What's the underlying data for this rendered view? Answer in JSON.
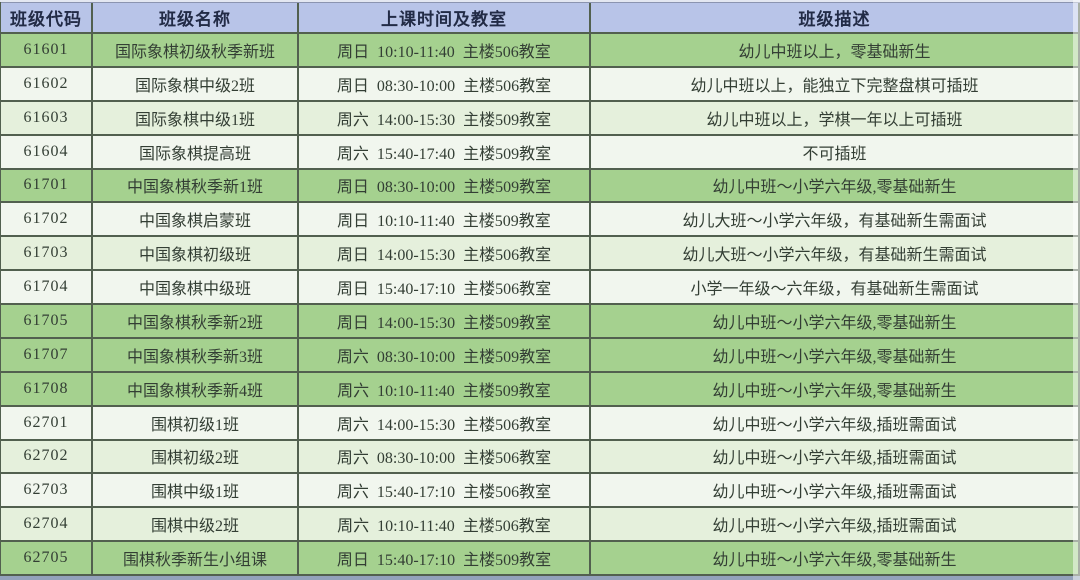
{
  "colors": {
    "header_bg": "#b8c4e8",
    "row_green": "#a5d18f",
    "row_lightgreen": "#e5f0dc",
    "row_white": "#f1f6ee",
    "border": "#52604f",
    "header_text": "#222b46",
    "body_text": "#333e34",
    "top_strip": "#e3e7f1",
    "bottom_strip": "#93a2bb"
  },
  "table": {
    "columns": [
      {
        "key": "code",
        "label": "班级代码"
      },
      {
        "key": "name",
        "label": "班级名称"
      },
      {
        "key": "schedule",
        "label": "上课时间及教室"
      },
      {
        "key": "description",
        "label": "班级描述"
      }
    ],
    "rows": [
      {
        "code": "61601",
        "name": "国际象棋初级秋季新班",
        "schedule": "周日  10:10-11:40  主楼506教室",
        "description": "幼儿中班以上，零基础新生",
        "band": "green"
      },
      {
        "code": "61602",
        "name": "国际象棋中级2班",
        "schedule": "周日  08:30-10:00  主楼506教室",
        "description": "幼儿中班以上，能独立下完整盘棋可插班",
        "band": "white"
      },
      {
        "code": "61603",
        "name": "国际象棋中级1班",
        "schedule": "周六  14:00-15:30  主楼509教室",
        "description": "幼儿中班以上，学棋一年以上可插班",
        "band": "lightgreen"
      },
      {
        "code": "61604",
        "name": "国际象棋提高班",
        "schedule": "周六  15:40-17:40  主楼509教室",
        "description": "不可插班",
        "band": "white"
      },
      {
        "code": "61701",
        "name": "中国象棋秋季新1班",
        "schedule": "周日  08:30-10:00  主楼509教室",
        "description": "幼儿中班～小学六年级,零基础新生",
        "band": "green"
      },
      {
        "code": "61702",
        "name": "中国象棋启蒙班",
        "schedule": "周日  10:10-11:40  主楼509教室",
        "description": "幼儿大班～小学六年级，有基础新生需面试",
        "band": "white"
      },
      {
        "code": "61703",
        "name": "中国象棋初级班",
        "schedule": "周日  14:00-15:30  主楼506教室",
        "description": "幼儿大班～小学六年级，有基础新生需面试",
        "band": "lightgreen"
      },
      {
        "code": "61704",
        "name": "中国象棋中级班",
        "schedule": "周日  15:40-17:10  主楼506教室",
        "description": "小学一年级～六年级，有基础新生需面试",
        "band": "white"
      },
      {
        "code": "61705",
        "name": "中国象棋秋季新2班",
        "schedule": "周日  14:00-15:30  主楼509教室",
        "description": "幼儿中班～小学六年级,零基础新生",
        "band": "green"
      },
      {
        "code": "61707",
        "name": "中国象棋秋季新3班",
        "schedule": "周六  08:30-10:00  主楼509教室",
        "description": "幼儿中班～小学六年级,零基础新生",
        "band": "green"
      },
      {
        "code": "61708",
        "name": "中国象棋秋季新4班",
        "schedule": "周六  10:10-11:40  主楼509教室",
        "description": "幼儿中班～小学六年级,零基础新生",
        "band": "green"
      },
      {
        "code": "62701",
        "name": "围棋初级1班",
        "schedule": "周六  14:00-15:30  主楼506教室",
        "description": "幼儿中班～小学六年级,插班需面试",
        "band": "white"
      },
      {
        "code": "62702",
        "name": "围棋初级2班",
        "schedule": "周六  08:30-10:00  主楼506教室",
        "description": "幼儿中班～小学六年级,插班需面试",
        "band": "lightgreen"
      },
      {
        "code": "62703",
        "name": "围棋中级1班",
        "schedule": "周六  15:40-17:10  主楼506教室",
        "description": "幼儿中班～小学六年级,插班需面试",
        "band": "white"
      },
      {
        "code": "62704",
        "name": "围棋中级2班",
        "schedule": "周六  10:10-11:40  主楼506教室",
        "description": "幼儿中班～小学六年级,插班需面试",
        "band": "lightgreen"
      },
      {
        "code": "62705",
        "name": "围棋秋季新生小组课",
        "schedule": "周日  15:40-17:10  主楼509教室",
        "description": "幼儿中班～小学六年级,零基础新生",
        "band": "green"
      }
    ]
  }
}
